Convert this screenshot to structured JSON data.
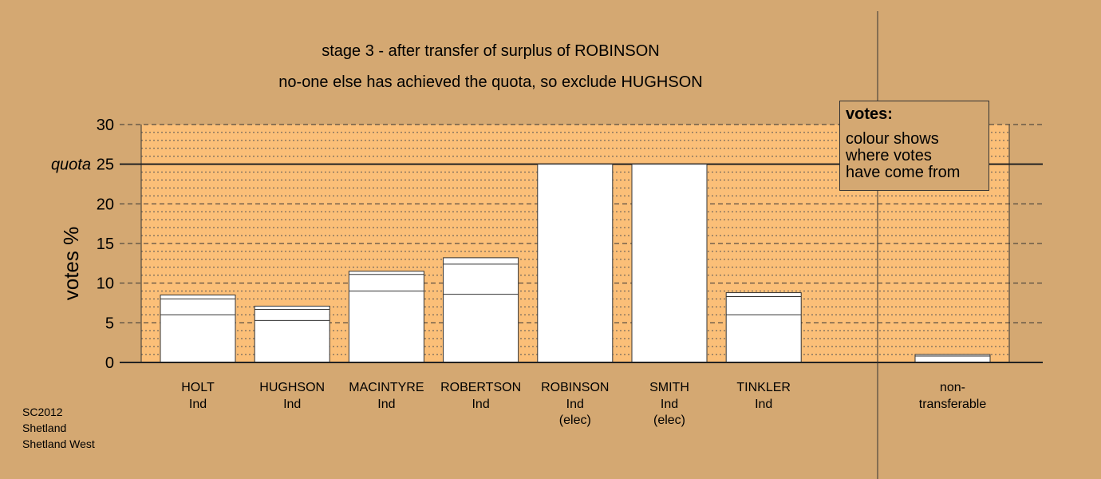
{
  "chart_data": {
    "type": "bar",
    "title": "stage 3 - after transfer of surplus of ROBINSON",
    "subtitle": "no-one else has achieved the quota, so exclude HUGHSON",
    "ylabel": "votes %",
    "ylim": [
      0,
      30
    ],
    "yticks": [
      0,
      5,
      10,
      15,
      20,
      25,
      30
    ],
    "quota": 25,
    "quota_label": "quota",
    "candidates": [
      {
        "name": "HOLT",
        "party": "Ind",
        "note": "",
        "segments": [
          6.0,
          2.0,
          0.5
        ]
      },
      {
        "name": "HUGHSON",
        "party": "Ind",
        "note": "",
        "segments": [
          5.3,
          1.4,
          0.4
        ]
      },
      {
        "name": "MACINTYRE",
        "party": "Ind",
        "note": "",
        "segments": [
          9.0,
          2.1,
          0.4
        ]
      },
      {
        "name": "ROBERTSON",
        "party": "Ind",
        "note": "",
        "segments": [
          8.6,
          3.8,
          0.8
        ]
      },
      {
        "name": "ROBINSON",
        "party": "Ind",
        "note": "(elec)",
        "segments": [
          25.0
        ]
      },
      {
        "name": "SMITH",
        "party": "Ind",
        "note": "(elec)",
        "segments": [
          25.0
        ]
      },
      {
        "name": "TINKLER",
        "party": "Ind",
        "note": "",
        "segments": [
          6.0,
          2.3,
          0.5
        ]
      }
    ],
    "nontransferable": {
      "label_line1": "non-",
      "label_line2": "transferable",
      "segments": [
        0.8,
        0.2
      ]
    },
    "grid": true,
    "legend": {
      "title": "votes:",
      "lines": [
        "colour shows",
        "where votes",
        "have come from"
      ],
      "placement": "top-right"
    },
    "colors": {
      "background": "#d4a872",
      "plot_area": "#fbbf78",
      "bar": "#ffffff"
    }
  },
  "footer": {
    "line1": "SC2012",
    "line2": "Shetland",
    "line3": "Shetland West"
  }
}
